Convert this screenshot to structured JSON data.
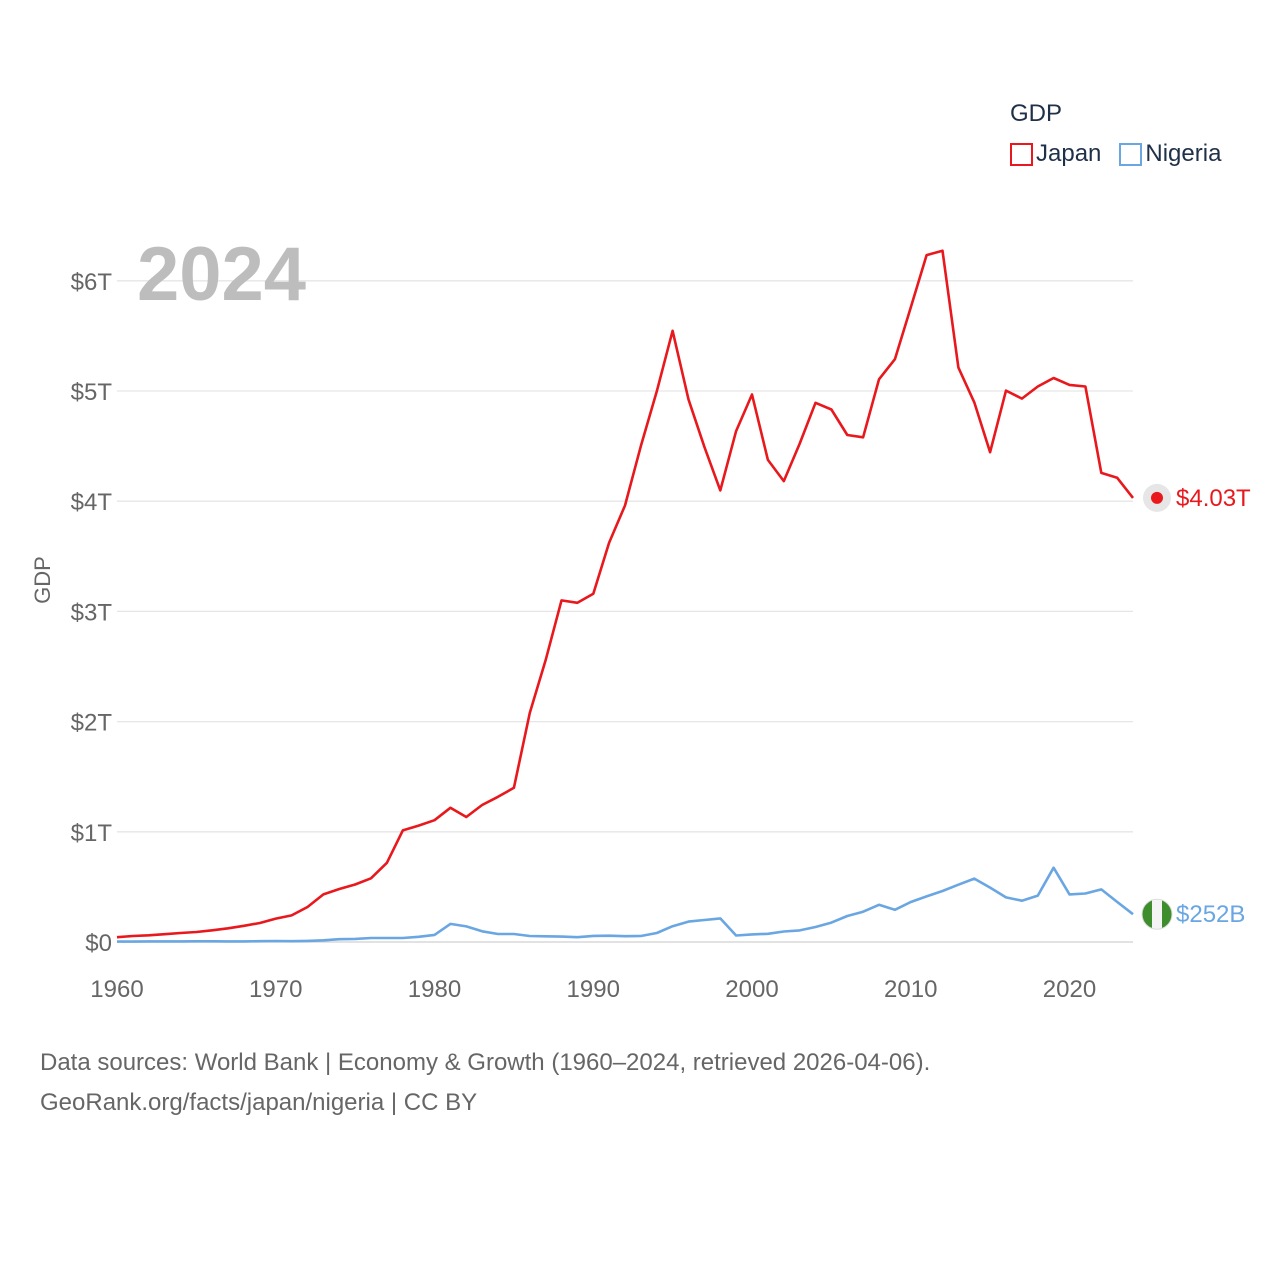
{
  "legend": {
    "title": "GDP",
    "items": [
      {
        "name": "Japan",
        "color": "#e8181d"
      },
      {
        "name": "Nigeria",
        "color": "#6aa6e2"
      }
    ]
  },
  "year_label": "2024",
  "footer": {
    "line1": "Data sources: World Bank | Economy & Growth (1960–2024, retrieved 2026-04-06).",
    "line2": "GeoRank.org/facts/japan/nigeria | CC BY"
  },
  "chart_data": {
    "type": "line",
    "title": "",
    "xlabel": "",
    "ylabel": "GDP",
    "xlim": [
      1960,
      2024
    ],
    "ylim": [
      0,
      6.3
    ],
    "y_unit": "trillion USD",
    "yticks": [
      0,
      1,
      2,
      3,
      4,
      5,
      6
    ],
    "ytick_labels": [
      "$0",
      "$1T",
      "$2T",
      "$3T",
      "$4T",
      "$5T",
      "$6T"
    ],
    "xticks": [
      1960,
      1970,
      1980,
      1990,
      2000,
      2010,
      2020
    ],
    "xtick_labels": [
      "1960",
      "1970",
      "1980",
      "1990",
      "2000",
      "2010",
      "2020"
    ],
    "grid": true,
    "legend_position": "top-right",
    "x": [
      1960,
      1961,
      1962,
      1963,
      1964,
      1965,
      1966,
      1967,
      1968,
      1969,
      1970,
      1971,
      1972,
      1973,
      1974,
      1975,
      1976,
      1977,
      1978,
      1979,
      1980,
      1981,
      1982,
      1983,
      1984,
      1985,
      1986,
      1987,
      1988,
      1989,
      1990,
      1991,
      1992,
      1993,
      1994,
      1995,
      1996,
      1997,
      1998,
      1999,
      2000,
      2001,
      2002,
      2003,
      2004,
      2005,
      2006,
      2007,
      2008,
      2009,
      2010,
      2011,
      2012,
      2013,
      2014,
      2015,
      2016,
      2017,
      2018,
      2019,
      2020,
      2021,
      2022,
      2023,
      2024
    ],
    "series": [
      {
        "name": "Japan",
        "color": "#e8181d",
        "end_label": "$4.03T",
        "values": [
          0.044,
          0.054,
          0.061,
          0.071,
          0.082,
          0.091,
          0.106,
          0.124,
          0.147,
          0.172,
          0.212,
          0.241,
          0.318,
          0.432,
          0.481,
          0.522,
          0.578,
          0.719,
          1.013,
          1.056,
          1.105,
          1.218,
          1.134,
          1.243,
          1.318,
          1.399,
          2.079,
          2.556,
          3.1,
          3.078,
          3.16,
          3.623,
          3.961,
          4.502,
          4.997,
          5.546,
          4.924,
          4.493,
          4.098,
          4.636,
          4.968,
          4.375,
          4.182,
          4.52,
          4.893,
          4.832,
          4.601,
          4.58,
          5.106,
          5.289,
          5.759,
          6.233,
          6.273,
          5.212,
          4.897,
          4.445,
          5.004,
          4.931,
          5.041,
          5.118,
          5.055,
          5.041,
          4.257,
          4.213,
          4.03
        ]
      },
      {
        "name": "Nigeria",
        "color": "#6aa6e2",
        "end_label": "$252B",
        "values": [
          0.004,
          0.004,
          0.005,
          0.005,
          0.005,
          0.006,
          0.006,
          0.005,
          0.005,
          0.007,
          0.009,
          0.007,
          0.01,
          0.015,
          0.025,
          0.028,
          0.036,
          0.036,
          0.036,
          0.047,
          0.064,
          0.164,
          0.142,
          0.097,
          0.073,
          0.073,
          0.054,
          0.052,
          0.049,
          0.044,
          0.055,
          0.057,
          0.053,
          0.054,
          0.082,
          0.143,
          0.185,
          0.2,
          0.214,
          0.059,
          0.069,
          0.074,
          0.095,
          0.105,
          0.136,
          0.176,
          0.236,
          0.275,
          0.338,
          0.292,
          0.363,
          0.414,
          0.463,
          0.52,
          0.575,
          0.494,
          0.405,
          0.375,
          0.421,
          0.674,
          0.432,
          0.44,
          0.477,
          0.364,
          0.252
        ]
      }
    ]
  }
}
